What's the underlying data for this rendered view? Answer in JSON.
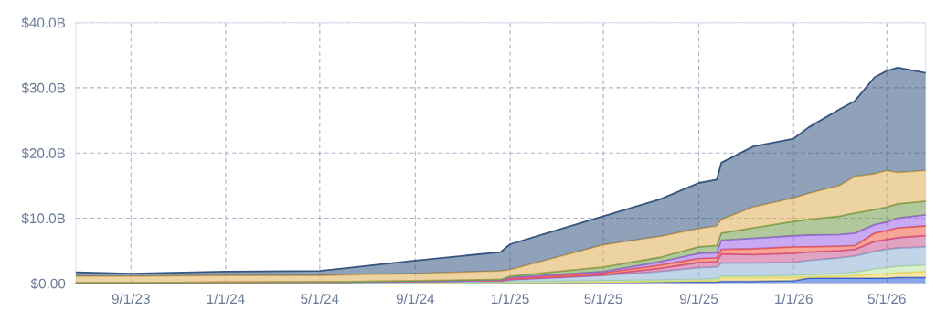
{
  "chart_data": {
    "type": "area",
    "stacked": true,
    "grid": true,
    "line_style": "solid",
    "x": [
      "2023-06-22",
      "2023-09-01",
      "2024-01-01",
      "2024-05-01",
      "2024-06-01",
      "2024-09-01",
      "2024-12-20",
      "2025-01-01",
      "2025-05-01",
      "2025-07-13",
      "2025-09-01",
      "2025-09-24",
      "2025-09-30",
      "2025-11-10",
      "2026-01-01",
      "2026-01-20",
      "2026-03-01",
      "2026-03-21",
      "2026-04-15",
      "2026-05-01",
      "2026-05-15",
      "2026-06-20"
    ],
    "series": [
      {
        "color": "#2a5bd7",
        "values": [
          0.05,
          0.05,
          0.05,
          0.05,
          0.05,
          0.1,
          0.1,
          0.1,
          0.15,
          0.2,
          0.2,
          0.2,
          0.3,
          0.3,
          0.4,
          0.8,
          0.8,
          0.8,
          0.8,
          0.8,
          0.9,
          0.9
        ]
      },
      {
        "color": "#f2d45c",
        "values": [
          0,
          0,
          0,
          0,
          0,
          0,
          0,
          0,
          0.05,
          0.1,
          0.2,
          0.2,
          0.6,
          0.6,
          0.5,
          0.2,
          0.3,
          0.4,
          0.6,
          0.7,
          0.7,
          0.9
        ]
      },
      {
        "color": "#b9e3a4",
        "values": [
          0,
          0,
          0,
          0,
          0,
          0,
          0.05,
          0.1,
          0.2,
          0.2,
          0.2,
          0.3,
          0.2,
          0.2,
          0.3,
          0.3,
          0.4,
          0.5,
          0.8,
          0.9,
          1.0,
          1.0
        ]
      },
      {
        "color": "#8fb1d6",
        "values": [
          0.05,
          0.05,
          0.05,
          0.05,
          0.05,
          0.1,
          0.15,
          0.3,
          0.8,
          1.3,
          1.8,
          1.8,
          2.0,
          2.0,
          2.0,
          2.2,
          2.4,
          2.5,
          2.7,
          2.8,
          2.8,
          2.8
        ]
      },
      {
        "color": "#c9578f",
        "values": [
          0,
          0,
          0.05,
          0.1,
          0.1,
          0.1,
          0.1,
          0.1,
          0.1,
          0.5,
          0.8,
          0.8,
          1.4,
          1.3,
          1.4,
          1.3,
          1.1,
          1.0,
          1.5,
          1.5,
          1.6,
          1.7
        ]
      },
      {
        "color": "#f05a46",
        "values": [
          0,
          0,
          0,
          0,
          0,
          0,
          0.05,
          0.2,
          0.3,
          0.5,
          0.6,
          0.6,
          0.7,
          0.9,
          1.0,
          0.8,
          0.7,
          0.6,
          1.3,
          1.4,
          1.5,
          1.5
        ]
      },
      {
        "color": "#9b63e8",
        "values": [
          0,
          0,
          0,
          0,
          0,
          0,
          0.05,
          0.1,
          0.2,
          0.5,
          0.8,
          0.8,
          1.4,
          1.6,
          1.7,
          1.8,
          1.8,
          1.9,
          1.3,
          1.3,
          1.5,
          1.7
        ]
      },
      {
        "color": "#6f9a4a",
        "values": [
          0,
          0,
          0,
          0,
          0.05,
          0.1,
          0.1,
          0.2,
          0.7,
          0.7,
          1.0,
          1.1,
          1.1,
          1.6,
          2.2,
          2.4,
          2.8,
          3.1,
          2.3,
          2.3,
          2.2,
          2.1
        ]
      },
      {
        "color": "#e0ae55",
        "values": [
          1.0,
          1.0,
          1.05,
          1.0,
          1.05,
          1.1,
          1.3,
          1.0,
          3.4,
          3.2,
          2.8,
          3.0,
          2.1,
          3.2,
          3.6,
          4.0,
          4.7,
          5.6,
          5.5,
          5.6,
          4.8,
          4.7
        ]
      },
      {
        "color": "#34557f",
        "values": [
          0.6,
          0.4,
          0.6,
          0.7,
          1.0,
          2.0,
          2.9,
          3.9,
          4.4,
          5.7,
          7.0,
          7.1,
          8.7,
          9.3,
          9.1,
          10.1,
          11.7,
          11.6,
          14.8,
          15.3,
          16.1,
          15.0
        ]
      }
    ],
    "xlim": [
      "2023-06-22",
      "2026-06-20"
    ],
    "xticks": [
      {
        "value": "2023-09-01",
        "label": "9/1/23"
      },
      {
        "value": "2024-01-01",
        "label": "1/1/24"
      },
      {
        "value": "2024-05-01",
        "label": "5/1/24"
      },
      {
        "value": "2024-09-01",
        "label": "9/1/24"
      },
      {
        "value": "2025-01-01",
        "label": "1/1/25"
      },
      {
        "value": "2025-05-01",
        "label": "5/1/25"
      },
      {
        "value": "2025-09-01",
        "label": "9/1/25"
      },
      {
        "value": "2026-01-01",
        "label": "1/1/26"
      },
      {
        "value": "2026-05-01",
        "label": "5/1/26"
      }
    ],
    "ylim": [
      0,
      40
    ],
    "yticks": [
      {
        "value": 0,
        "label": "$0.00"
      },
      {
        "value": 10,
        "label": "$10.0B"
      },
      {
        "value": 20,
        "label": "$20.0B"
      },
      {
        "value": 30,
        "label": "$30.0B"
      },
      {
        "value": 40,
        "label": "$40.0B"
      }
    ]
  }
}
